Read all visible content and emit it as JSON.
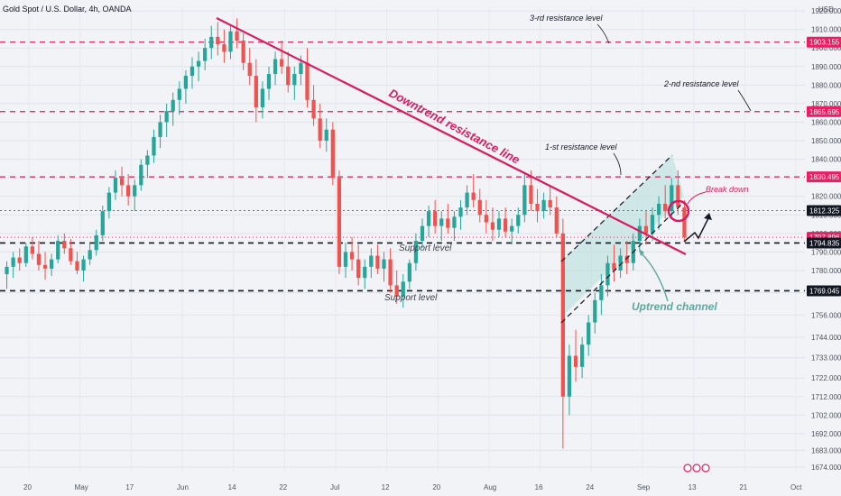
{
  "title": "Gold Spot / U.S. Dollar, 4h, OANDA",
  "currency": "USD",
  "colors": {
    "up": "#26a69a",
    "down": "#ef5350",
    "trendline": "#d81b60",
    "resistance": "#d81b60",
    "support": "#131722",
    "channel_fill": "#b2dfdb",
    "channel_text": "#5fa79d",
    "price_tag_pink": "#e91e63",
    "price_tag_dark": "#131722"
  },
  "chart_data": {
    "type": "candlestick",
    "x_ticks": [
      "20",
      "May",
      "17",
      "Jun",
      "14",
      "22",
      "Jul",
      "12",
      "20",
      "Aug",
      "16",
      "24",
      "Sep",
      "13",
      "21",
      "Oct"
    ],
    "y_ticks": [
      1920.0,
      1910.0,
      1900.0,
      1890.0,
      1880.0,
      1870.0,
      1860.0,
      1850.0,
      1840.0,
      1830.0,
      1820.0,
      1810.0,
      1800.0,
      1790.0,
      1780.0,
      1768.0,
      1756.0,
      1744.0,
      1733.0,
      1722.0,
      1712.0,
      1702.0,
      1692.0,
      1683.0,
      1674.0
    ],
    "ylim": [
      1672,
      1922
    ],
    "levels": [
      {
        "label": "1903.155",
        "value": 1903.155,
        "style": "resistance"
      },
      {
        "label": "1865.695",
        "value": 1865.695,
        "style": "resistance"
      },
      {
        "label": "1830.495",
        "value": 1830.495,
        "style": "resistance"
      },
      {
        "label": "1812.325",
        "value": 1812.325,
        "style": "dotted"
      },
      {
        "label": "1797.896",
        "value": 1797.896,
        "style": "current"
      },
      {
        "label": "1794.835",
        "value": 1794.835,
        "style": "support"
      },
      {
        "label": "1769.045",
        "value": 1769.045,
        "style": "support"
      }
    ],
    "annotations": {
      "downtrend": "Downtrend resistance line",
      "r3": "3-rd resistance level",
      "r2": "2-nd resistance level",
      "r1": "1-st resistance level",
      "support_upper": "Support level",
      "support_lower": "Support level",
      "channel": "Uptrend channel",
      "breakdown": "Break down"
    },
    "ohlc": [
      [
        1778,
        1785,
        1770,
        1782
      ],
      [
        1782,
        1790,
        1776,
        1787
      ],
      [
        1787,
        1792,
        1780,
        1784
      ],
      [
        1784,
        1795,
        1782,
        1793
      ],
      [
        1793,
        1798,
        1786,
        1789
      ],
      [
        1789,
        1796,
        1780,
        1783
      ],
      [
        1783,
        1790,
        1775,
        1781
      ],
      [
        1781,
        1789,
        1777,
        1786
      ],
      [
        1786,
        1799,
        1784,
        1796
      ],
      [
        1796,
        1800,
        1789,
        1792
      ],
      [
        1792,
        1797,
        1783,
        1785
      ],
      [
        1785,
        1790,
        1778,
        1780
      ],
      [
        1780,
        1788,
        1774,
        1786
      ],
      [
        1786,
        1795,
        1783,
        1791
      ],
      [
        1791,
        1802,
        1788,
        1799
      ],
      [
        1799,
        1815,
        1796,
        1812
      ],
      [
        1812,
        1825,
        1808,
        1822
      ],
      [
        1822,
        1834,
        1818,
        1830
      ],
      [
        1830,
        1836,
        1820,
        1826
      ],
      [
        1826,
        1832,
        1815,
        1820
      ],
      [
        1820,
        1829,
        1812,
        1826
      ],
      [
        1826,
        1840,
        1823,
        1837
      ],
      [
        1837,
        1845,
        1830,
        1842
      ],
      [
        1842,
        1856,
        1838,
        1852
      ],
      [
        1852,
        1864,
        1846,
        1860
      ],
      [
        1860,
        1870,
        1852,
        1866
      ],
      [
        1866,
        1876,
        1858,
        1872
      ],
      [
        1872,
        1882,
        1864,
        1878
      ],
      [
        1878,
        1888,
        1870,
        1885
      ],
      [
        1885,
        1895,
        1878,
        1890
      ],
      [
        1890,
        1898,
        1882,
        1893
      ],
      [
        1893,
        1905,
        1888,
        1900
      ],
      [
        1900,
        1912,
        1894,
        1906
      ],
      [
        1906,
        1914,
        1896,
        1902
      ],
      [
        1902,
        1910,
        1892,
        1898
      ],
      [
        1898,
        1912,
        1894,
        1909
      ],
      [
        1909,
        1916,
        1900,
        1904
      ],
      [
        1904,
        1908,
        1888,
        1892
      ],
      [
        1892,
        1900,
        1880,
        1885
      ],
      [
        1885,
        1894,
        1860,
        1868
      ],
      [
        1868,
        1882,
        1862,
        1878
      ],
      [
        1878,
        1890,
        1872,
        1886
      ],
      [
        1886,
        1898,
        1880,
        1894
      ],
      [
        1894,
        1904,
        1886,
        1890
      ],
      [
        1890,
        1898,
        1876,
        1880
      ],
      [
        1880,
        1890,
        1872,
        1886
      ],
      [
        1886,
        1896,
        1880,
        1892
      ],
      [
        1892,
        1900,
        1868,
        1872
      ],
      [
        1872,
        1880,
        1858,
        1862
      ],
      [
        1862,
        1870,
        1846,
        1850
      ],
      [
        1850,
        1862,
        1844,
        1856
      ],
      [
        1856,
        1860,
        1826,
        1830
      ],
      [
        1830,
        1834,
        1778,
        1782
      ],
      [
        1782,
        1795,
        1776,
        1790
      ],
      [
        1790,
        1798,
        1780,
        1786
      ],
      [
        1786,
        1794,
        1772,
        1776
      ],
      [
        1776,
        1786,
        1770,
        1782
      ],
      [
        1782,
        1792,
        1776,
        1788
      ],
      [
        1788,
        1794,
        1778,
        1781
      ],
      [
        1781,
        1790,
        1774,
        1786
      ],
      [
        1786,
        1792,
        1768,
        1772
      ],
      [
        1772,
        1780,
        1762,
        1766
      ],
      [
        1766,
        1778,
        1760,
        1774
      ],
      [
        1774,
        1786,
        1770,
        1784
      ],
      [
        1784,
        1800,
        1780,
        1796
      ],
      [
        1796,
        1808,
        1792,
        1804
      ],
      [
        1804,
        1815,
        1798,
        1812
      ],
      [
        1812,
        1818,
        1800,
        1804
      ],
      [
        1804,
        1812,
        1796,
        1808
      ],
      [
        1808,
        1816,
        1800,
        1803
      ],
      [
        1803,
        1812,
        1796,
        1809
      ],
      [
        1809,
        1818,
        1802,
        1814
      ],
      [
        1814,
        1826,
        1810,
        1822
      ],
      [
        1822,
        1832,
        1814,
        1818
      ],
      [
        1818,
        1824,
        1806,
        1810
      ],
      [
        1810,
        1818,
        1800,
        1806
      ],
      [
        1806,
        1814,
        1796,
        1802
      ],
      [
        1802,
        1812,
        1798,
        1808
      ],
      [
        1808,
        1814,
        1798,
        1801
      ],
      [
        1801,
        1808,
        1794,
        1804
      ],
      [
        1804,
        1814,
        1800,
        1810
      ],
      [
        1810,
        1832,
        1806,
        1826
      ],
      [
        1826,
        1834,
        1812,
        1816
      ],
      [
        1816,
        1824,
        1806,
        1812
      ],
      [
        1812,
        1822,
        1808,
        1818
      ],
      [
        1818,
        1826,
        1810,
        1814
      ],
      [
        1814,
        1820,
        1798,
        1800
      ],
      [
        1800,
        1808,
        1684,
        1712
      ],
      [
        1712,
        1740,
        1702,
        1734
      ],
      [
        1734,
        1748,
        1720,
        1728
      ],
      [
        1728,
        1744,
        1722,
        1740
      ],
      [
        1740,
        1756,
        1734,
        1752
      ],
      [
        1752,
        1768,
        1746,
        1764
      ],
      [
        1764,
        1778,
        1756,
        1772
      ],
      [
        1772,
        1788,
        1766,
        1784
      ],
      [
        1784,
        1794,
        1774,
        1780
      ],
      [
        1780,
        1792,
        1776,
        1788
      ],
      [
        1788,
        1796,
        1778,
        1784
      ],
      [
        1784,
        1800,
        1780,
        1796
      ],
      [
        1796,
        1808,
        1790,
        1804
      ],
      [
        1804,
        1812,
        1794,
        1800
      ],
      [
        1800,
        1814,
        1796,
        1810
      ],
      [
        1810,
        1820,
        1802,
        1816
      ],
      [
        1816,
        1826,
        1808,
        1812
      ],
      [
        1812,
        1830,
        1808,
        1826
      ],
      [
        1826,
        1834,
        1810,
        1814
      ],
      [
        1814,
        1818,
        1796,
        1798
      ]
    ]
  },
  "x_label_hidden": ""
}
